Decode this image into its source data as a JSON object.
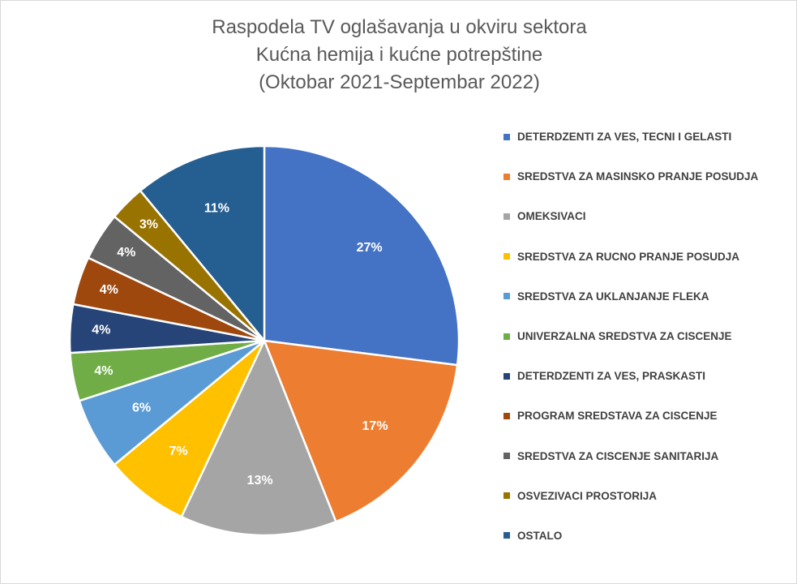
{
  "chart_data": {
    "type": "pie",
    "title": [
      "Raspodela TV oglašavanja u okviru sektora",
      "Kućna hemija i kućne potrepštine",
      "(Oktobar 2021-Septembar 2022)"
    ],
    "legend_position": "right",
    "series": [
      {
        "name": "DETERDZENTI ZA VES, TECNI I GELASTI",
        "value": 27,
        "label": "27%",
        "color": "#4472C4"
      },
      {
        "name": "SREDSTVA ZA MASINSKO PRANJE POSUDJA",
        "value": 17,
        "label": "17%",
        "color": "#ED7D31"
      },
      {
        "name": "OMEKSIVACI",
        "value": 13,
        "label": "13%",
        "color": "#A5A5A5"
      },
      {
        "name": "SREDSTVA ZA RUCNO PRANJE POSUDJA",
        "value": 7,
        "label": "7%",
        "color": "#FFC000"
      },
      {
        "name": "SREDSTVA ZA UKLANJANJE FLEKA",
        "value": 6,
        "label": "6%",
        "color": "#5B9BD5"
      },
      {
        "name": "UNIVERZALNA SREDSTVA ZA CISCENJE",
        "value": 4,
        "label": "4%",
        "color": "#70AD47"
      },
      {
        "name": "DETERDZENTI ZA VES, PRASKASTI",
        "value": 4,
        "label": "4%",
        "color": "#264478"
      },
      {
        "name": "PROGRAM SREDSTAVA ZA CISCENJE",
        "value": 4,
        "label": "4%",
        "color": "#9E480E"
      },
      {
        "name": "SREDSTVA ZA CISCENJE SANITARIJA",
        "value": 4,
        "label": "4%",
        "color": "#636363"
      },
      {
        "name": "OSVEZIVACI PROSTORIJA",
        "value": 3,
        "label": "3%",
        "color": "#997300"
      },
      {
        "name": "OSTALO",
        "value": 11,
        "label": "11%",
        "color": "#255E91"
      }
    ]
  }
}
